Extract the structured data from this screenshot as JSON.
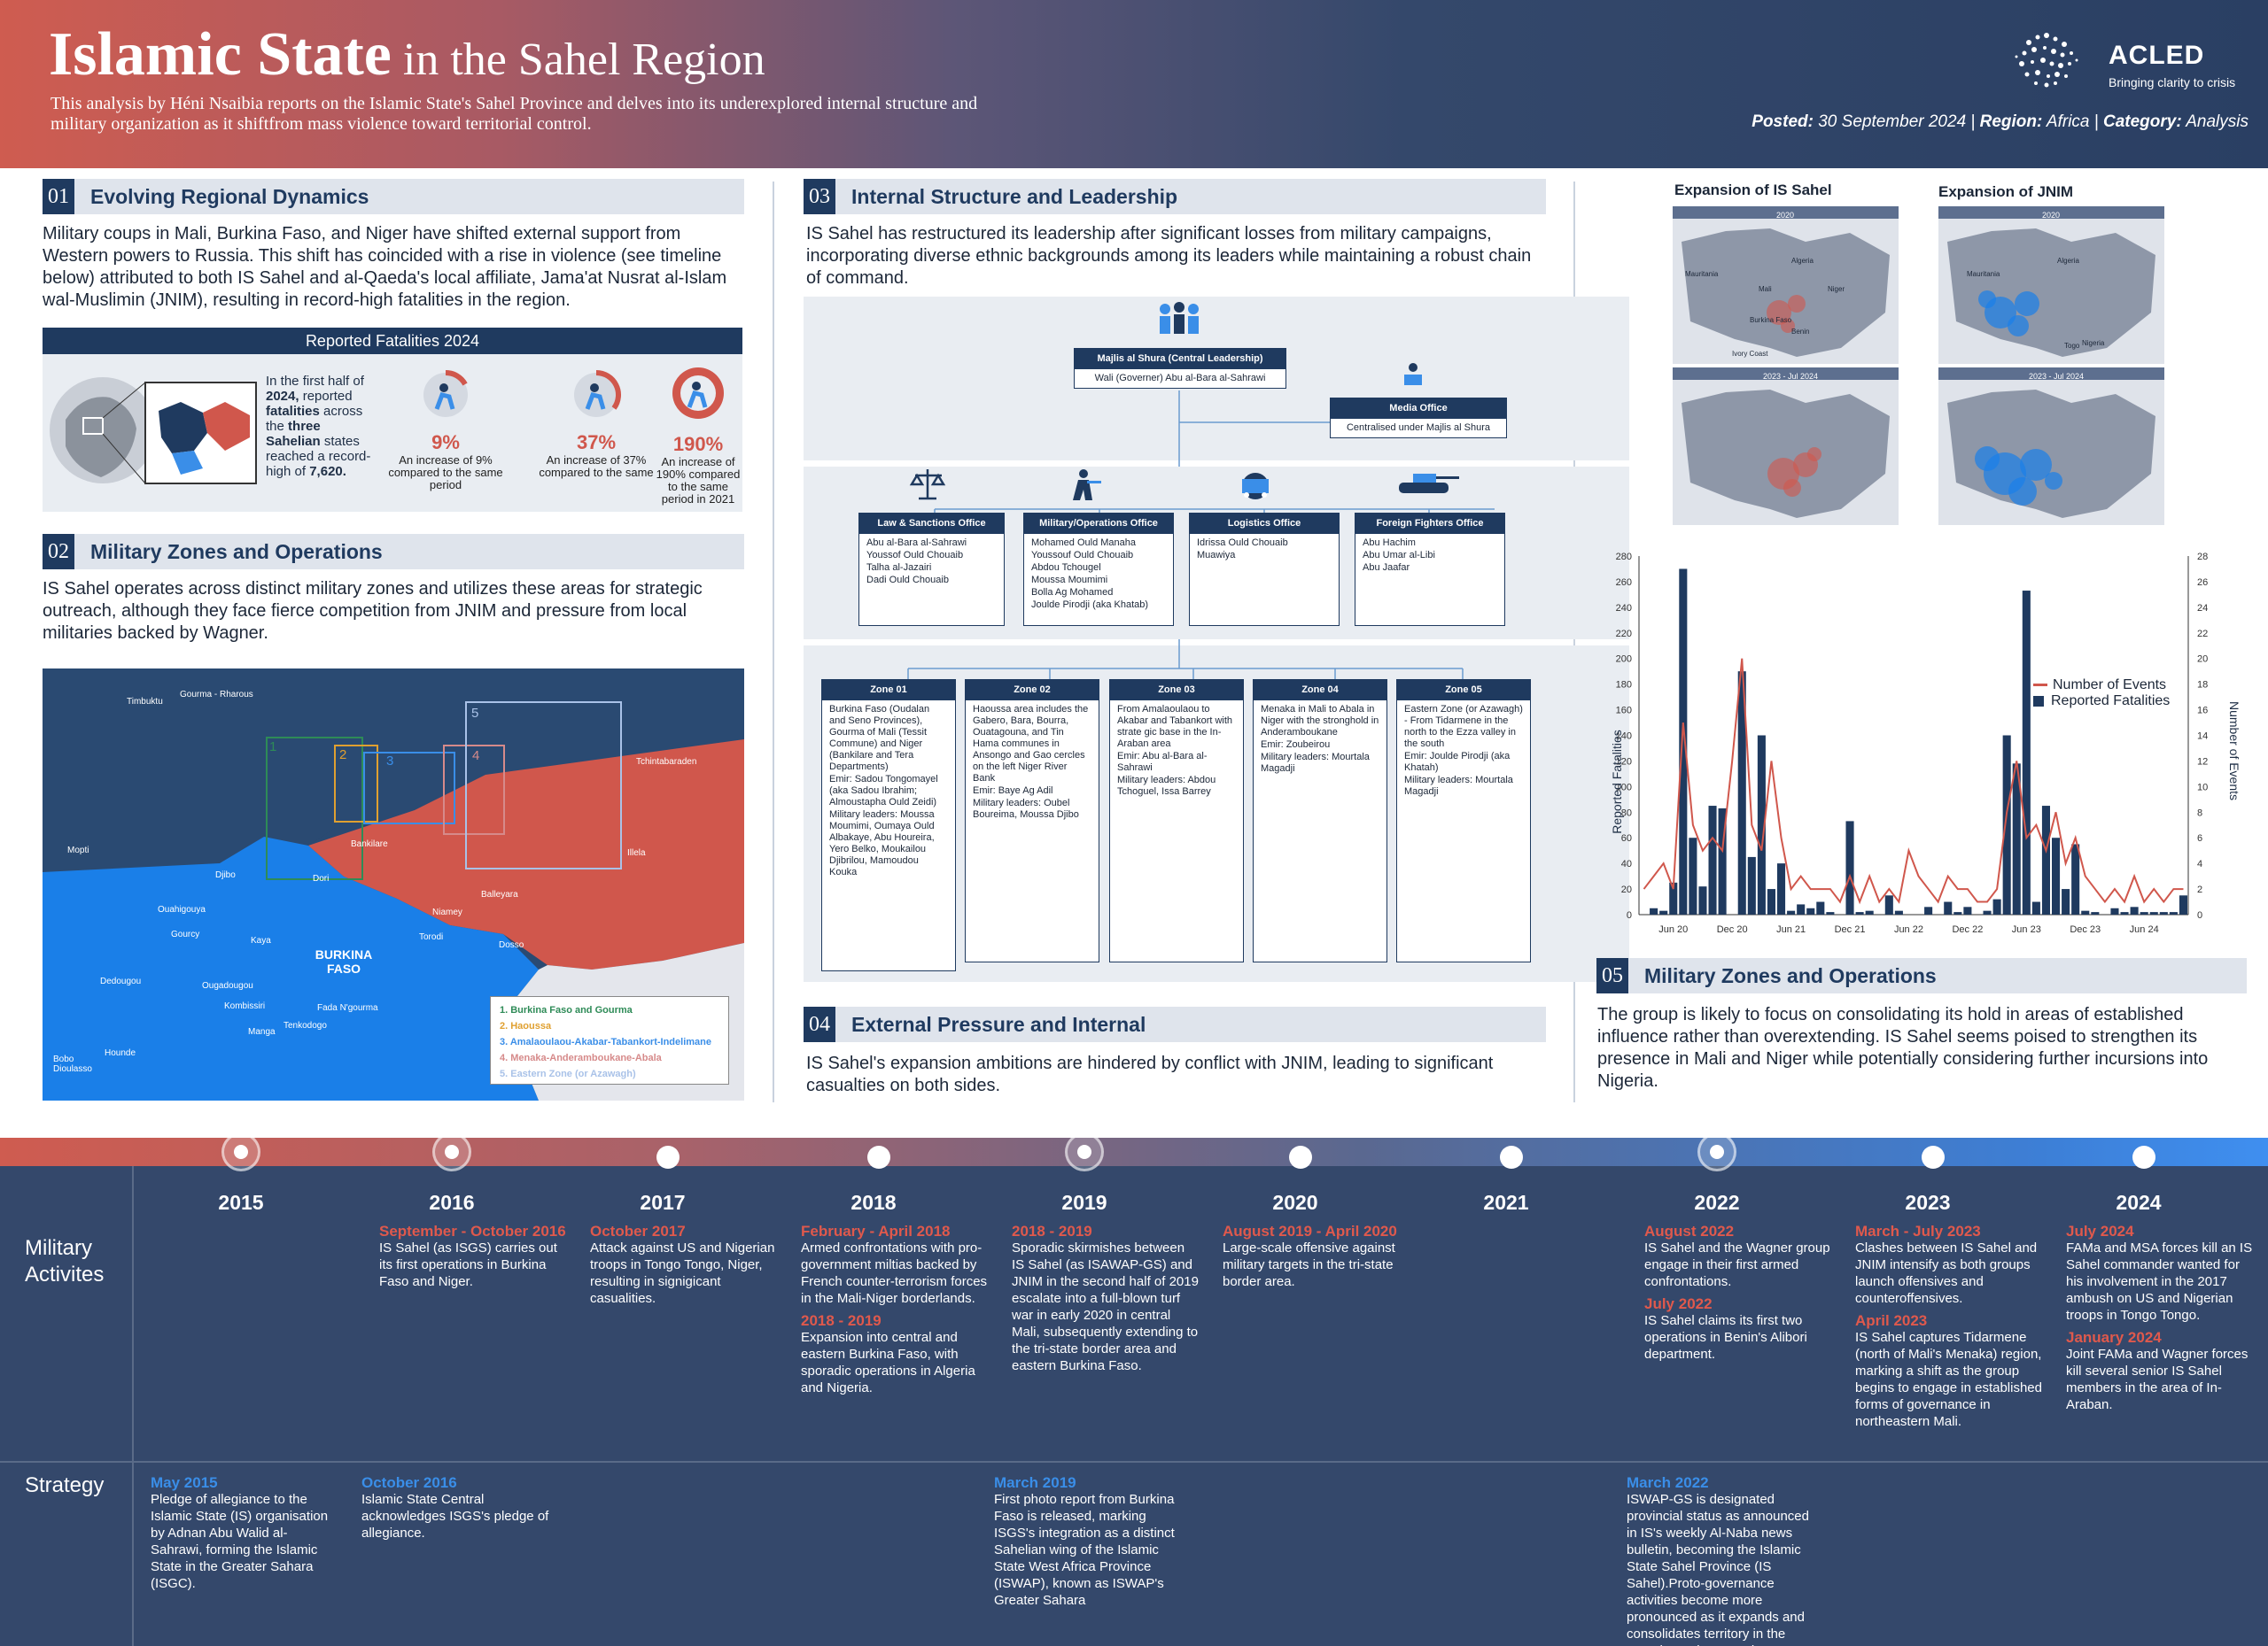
{
  "header": {
    "title_bold": "Islamic State",
    "title_rest": " in the Sahel Region",
    "subtitle": "This  analysis by Héni Nsaibia reports on the Islamic State's Sahel Province and delves into its underexplored internal structure and military organization as it shiftfrom mass violence toward territorial control.",
    "posted_label": "Posted:",
    "posted": " 30 September 2024 | ",
    "region_label": "Region:",
    "region": " Africa | ",
    "category_label": "Category:",
    "category": " Analysis",
    "logo_name": "ACLED",
    "logo_tagline": "Bringing clarity to crisis",
    "brand_color": "#1f3a5f",
    "accent_color": "#d0574c"
  },
  "s01": {
    "num": "01",
    "title": "Evolving Regional Dynamics",
    "text": "Military coups in Mali, Burkina Faso, and Niger have shifted external support from Western powers to Russia. This shift has coincided with a rise in violence (see timeline below) attributed to both IS Sahel and al-Qaeda's local affiliate, Jama'at Nusrat al-Islam wal-Muslimin (JNIM), resulting in record-high fatalities in the region.",
    "box_title": "Reported Fatalities 2024",
    "box_p1": "In the first half of ",
    "box_b1": "2024,",
    "box_p2": " reported ",
    "box_b2": "fatalities",
    "box_p3": " across the ",
    "box_b3": "three Sahelian",
    "box_p4": " states reached a record-high of ",
    "box_b4": "7,620.",
    "stats": [
      {
        "pct": "9%",
        "cap": "An increase of 9% compared to the same period",
        "icon": "armed-person-icon"
      },
      {
        "pct": "37%",
        "cap": "An increase of 37% compared to the same",
        "icon": "armed-person-icon"
      },
      {
        "pct": "190%",
        "cap": "An increase of 190% compared to the same period in 2021",
        "icon": "armed-person-icon"
      }
    ]
  },
  "s02": {
    "num": "02",
    "title": "Military Zones and Operations",
    "text": "IS Sahel operates across distinct military zones and utilizes these areas for strategic outreach, although they face fierce competition from JNIM and pressure from local militaries backed by Wagner.",
    "map_country": "BURKINA FASO",
    "places": [
      "Timbuktu",
      "Gourma - Rharous",
      "Tchintabaraden",
      "Mopti",
      "Bankilare",
      "Illela",
      "Djibo",
      "Dori",
      "Ouahigouya",
      "Niamey",
      "Balleyara",
      "Gourcy",
      "Kaya",
      "Torodi",
      "Dosso",
      "Dedougou",
      "Ougadougou",
      "Kombissiri",
      "Fada N'gourma",
      "Manga",
      "Tenkodogo",
      "Bobo Dioulasso",
      "Hounde"
    ],
    "legend": [
      "1.  Burkina Faso and Gourma",
      "2.  Haoussa",
      "3.  Amalaoulaou-Akabar-Tabankort-Indelimane",
      "4.  Menaka-Anderamboukane-Abala",
      "5.  Eastern Zone (or Azawagh)"
    ],
    "legend_colors": [
      "#2e8b57",
      "#e0a030",
      "#3a8ee8",
      "#d0574c",
      "#a9c2e8"
    ],
    "zone_nums": [
      "1",
      "2",
      "3",
      "4",
      "5"
    ]
  },
  "s03": {
    "num": "03",
    "title": "Internal Structure and Leadership",
    "text": "IS Sahel has restructured its leadership after significant losses from military campaigns, incorporating diverse ethnic backgrounds among its leaders while maintaining a robust chain of command.",
    "shura_title": "Majlis al Shura (Central Leadership)",
    "shura_sub": "Wali (Governer) Abu al-Bara al-Sahrawi",
    "media_title": "Media Office",
    "media_sub": "Centralised under Majlis al Shura",
    "offices": [
      {
        "title": "Law & Sanctions Office",
        "items": [
          "Abu al-Bara al-Sahrawi",
          "Youssof Ould Chouaib",
          "Talha al-Jazairi",
          "Dadi Ould Chouaib"
        ]
      },
      {
        "title": "Military/Operations Office",
        "items": [
          "Mohamed Ould Manaha",
          "Youssouf Ould Chouaib",
          "Abdou Tchougel",
          "Moussa Moumimi",
          "Bolla Ag Mohamed",
          "Joulde Pirodji (aka Khatab)"
        ]
      },
      {
        "title": "Logistics Office",
        "items": [
          "Idrissa Ould Chouaib",
          "Muawiya"
        ]
      },
      {
        "title": "Foreign Fighters Office",
        "items": [
          "Abu Hachim",
          "Abu Umar al-Libi",
          "Abu Jaafar"
        ]
      }
    ],
    "zones": [
      {
        "title": "Zone 01",
        "items": [
          "Burkina Faso (Oudalan and Seno Provinces), Gourma of Mali (Tessit Commune) and Niger (Bankilare and Tera Departments)",
          "Emir: Sadou Tongomayel (aka Sadou Ibrahim; Almoustapha Ould Zeidi)",
          "Military leaders: Moussa Moumimi, Oumaya Ould Albakaye, Abu Houreira, Yero Belko, Moukailou Djibrilou, Mamoudou Kouka"
        ]
      },
      {
        "title": "Zone 02",
        "items": [
          "Haoussa area includes the Gabero, Bara, Bourra, Ouatagouna, and Tin Hama communes in Ansongo and Gao cercles on the left Niger River Bank",
          "Emir: Baye Ag Adil",
          "Military leaders: Oubel Boureima, Moussa Djibo"
        ]
      },
      {
        "title": "Zone 03",
        "items": [
          "From Amalaoulaou to Akabar and Tabankort with strate gic base in the In-Araban area",
          "Emir: Abu al-Bara al-Sahrawi",
          "Military leaders: Abdou Tchoguel, Issa Barrey"
        ]
      },
      {
        "title": "Zone 04",
        "items": [
          "Menaka in Mali to Abala in Niger with the stronghold in Anderamboukane",
          "Emir: Zoubeirou",
          "Military leaders: Mourtala Magadji"
        ]
      },
      {
        "title": "Zone 05",
        "items": [
          "Eastern Zone (or Azawagh) - From Tidarmene in the north to the Ezza valley in the south",
          "Emir: Joulde Pirodji (aka Khatah)",
          "Military leaders: Mourtala Magadji"
        ]
      }
    ]
  },
  "s04": {
    "num": "04",
    "title": "External Pressure and Internal",
    "text": "IS Sahel's expansion ambitions are hindered by conflict with JNIM, leading to significant casualties on both sides."
  },
  "s05": {
    "num": "05",
    "title": "Military Zones and Operations",
    "text": "The group is likely to focus on consolidating its hold in areas of established influence rather than overextending. IS Sahel seems poised to strengthen its presence in Mali and Niger while potentially considering further incursions into Nigeria."
  },
  "expansion": {
    "is_title": "Expansion of IS Sahel",
    "jnim_title": "Expansion of JNIM",
    "p1": "2020",
    "p2": "2023 - Jul 2024",
    "labels": [
      "Mauritania",
      "Algeria",
      "Mali",
      "Niger",
      "Burkina Faso",
      "Benin",
      "Ivory Coast",
      "Togo",
      "Nigeria"
    ]
  },
  "chart_data": {
    "type": "bar",
    "legend": [
      "Number of Events",
      "Reported Fatalities"
    ],
    "ylabel": "Reported Fatalities",
    "y2label": "Number of Events",
    "ylim": [
      0,
      280
    ],
    "y2lim": [
      0,
      28
    ],
    "yticks": [
      0,
      20,
      40,
      60,
      80,
      100,
      120,
      140,
      160,
      180,
      200,
      220,
      240,
      260,
      280
    ],
    "y2ticks": [
      0,
      2,
      4,
      6,
      8,
      10,
      12,
      14,
      16,
      18,
      20,
      22,
      24,
      26,
      28
    ],
    "xtick_labels": [
      "Jun 20",
      "Dec 20",
      "Jun 21",
      "Dec 21",
      "Jun 22",
      "Dec 22",
      "Jun 23",
      "Dec 23",
      "Jun 24"
    ],
    "fatalities": [
      0,
      5,
      3,
      25,
      270,
      60,
      22,
      85,
      83,
      0,
      190,
      45,
      140,
      20,
      40,
      3,
      8,
      5,
      10,
      2,
      0,
      73,
      2,
      3,
      0,
      15,
      3,
      0,
      0,
      6,
      0,
      10,
      2,
      6,
      0,
      3,
      12,
      140,
      118,
      253,
      10,
      85,
      60,
      20,
      55,
      3,
      2,
      0,
      5,
      2,
      6,
      2,
      2,
      2,
      2,
      15
    ],
    "events": [
      2,
      3,
      4,
      2,
      15,
      7,
      5,
      6,
      5,
      12,
      20,
      7,
      5,
      12,
      6,
      2,
      3,
      2,
      2,
      2,
      1,
      3,
      1,
      3,
      1,
      2,
      1,
      5,
      3,
      2,
      1,
      3,
      2,
      2,
      1,
      1,
      2,
      8,
      12,
      6,
      7,
      5,
      8,
      4,
      6,
      3,
      2,
      1,
      2,
      1,
      3,
      1,
      2,
      1,
      2,
      2
    ],
    "colors": {
      "bars": "#1f3a5f",
      "line": "#d0574c"
    }
  },
  "timeline": {
    "row1": "Military Activites",
    "row2": "Strategy",
    "years": [
      "2015",
      "2016",
      "2017",
      "2018",
      "2019",
      "2020",
      "2021",
      "2022",
      "2023",
      "2024"
    ],
    "military": [
      {
        "col": 1,
        "blocks": [
          {
            "h": "September - October 2016",
            "t": "IS Sahel (as ISGS) carries out its first operations in Burkina Faso and Niger."
          }
        ]
      },
      {
        "col": 2,
        "blocks": [
          {
            "h": "October 2017",
            "t": "Attack against US and Nigerian troops in Tongo Tongo, Niger, resulting in signigicant casualities."
          }
        ]
      },
      {
        "col": 3,
        "blocks": [
          {
            "h": "February - April 2018",
            "t": "Armed confrontations with pro-government miltias backed by French counter-terrorism forces in the Mali-Niger borderlands."
          },
          {
            "h": "2018 - 2019",
            "t": "Expansion into central and eastern Burkina Faso, with sporadic operations in Algeria and Nigeria."
          }
        ]
      },
      {
        "col": 4,
        "blocks": [
          {
            "h": "2018 - 2019",
            "t": "Sporadic skirmishes between IS Sahel (as ISAWAP-GS) and JNIM in the second half of 2019 escalate into a full-blown turf war in early 2020 in central Mali, subsequently extending to the tri-state border area and eastern Burkina Faso."
          }
        ]
      },
      {
        "col": 5,
        "blocks": [
          {
            "h": "August 2019 - April 2020",
            "t": "Large-scale offensive against military targets in the tri-state border area."
          }
        ]
      },
      {
        "col": 7,
        "blocks": [
          {
            "h": "August 2022",
            "t": "IS Sahel and the Wagner group engage in their first armed confrontations."
          },
          {
            "h": "July 2022",
            "t": "IS Sahel claims its first two operations in Benin's Alibori department."
          }
        ]
      },
      {
        "col": 8,
        "blocks": [
          {
            "h": "March - July 2023",
            "t": "Clashes between IS Sahel and JNIM intensify as both groups launch offensives and counteroffensives."
          },
          {
            "h": "April 2023",
            "t": "IS Sahel captures Tidarmene (north of Mali's Menaka) region, marking a shift as the group begins to engage in established forms of governance in northeastern Mali."
          }
        ]
      },
      {
        "col": 9,
        "blocks": [
          {
            "h": "July 2024",
            "t": "FAMa and MSA forces kill an IS Sahel commander wanted for his involvement in the 2017 ambush on US and Nigerian troops in Tongo Tongo."
          },
          {
            "h": "January 2024",
            "t": "Joint FAMa and Wagner forces kill several senior IS Sahel members in the area of In-Araban."
          }
        ]
      }
    ],
    "strategy": [
      {
        "col": 0,
        "h": "May 2015",
        "t": "Pledge of allegiance to the Islamic State (IS) organisation by Adnan Abu Walid al-Sahrawi, forming the Islamic State in the Greater Sahara (ISGC)."
      },
      {
        "col": 1,
        "h": "October 2016",
        "t": "Islamic State Central acknowledges ISGS's pledge of allegiance."
      },
      {
        "col": 4,
        "h": "March 2019",
        "t": "First photo report from Burkina Faso is released, marking ISGS's integration as a distinct Sahelian wing of the Islamic State West Africa Province (ISWAP), known as ISWAP's Greater Sahara"
      },
      {
        "col": 7,
        "h": "March 2022",
        "t": "ISWAP-GS is designated provincial status as announced in IS's weekly Al-Naba news bulletin, becoming the Islamic State Sahel Province (IS Sahel).Proto-governance activities become more pronounced as it expands and consolidates territory in the Menaka and Gao regions."
      }
    ]
  }
}
